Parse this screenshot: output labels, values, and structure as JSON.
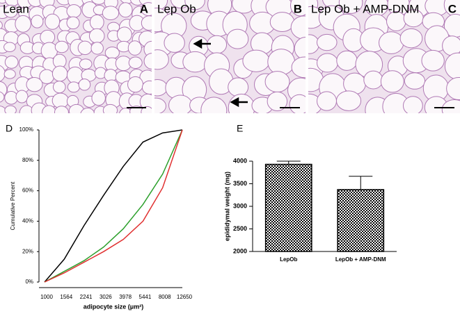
{
  "panels": [
    {
      "label": "Lean",
      "letter": "A"
    },
    {
      "label": "Lep Ob",
      "letter": "B"
    },
    {
      "label": "Lep Ob + AMP-DNM",
      "letter": "C"
    }
  ],
  "chart_data": [
    {
      "type": "line",
      "panel": "D",
      "y_label": "Cumulative Percent",
      "x_label": "adipocyte size (μm²)",
      "categories": [
        "1000",
        "1564",
        "2241",
        "3026",
        "3978",
        "5441",
        "8008",
        "12650"
      ],
      "series": [
        {
          "color": "#000000",
          "values": [
            0,
            15,
            37,
            57,
            76,
            92,
            98,
            100
          ]
        },
        {
          "color": "#2ca02c",
          "values": [
            0,
            7,
            14,
            23,
            35,
            51,
            71,
            100
          ]
        },
        {
          "color": "#e03030",
          "values": [
            0,
            6,
            13,
            20,
            28,
            40,
            62,
            100
          ]
        }
      ],
      "ylim": [
        0,
        100
      ],
      "yticks": [
        {
          "value": 0,
          "label": "0%"
        },
        {
          "value": 20,
          "label": "20%"
        },
        {
          "value": 40,
          "label": "40%"
        },
        {
          "value": 60,
          "label": "60%"
        },
        {
          "value": 80,
          "label": "80%"
        },
        {
          "value": 100,
          "label": "100%"
        }
      ]
    },
    {
      "type": "bar",
      "panel": "E",
      "y_label": "epididymal weight (mg)",
      "categories": [
        "LepOb",
        "LepOb + AMP-DNM"
      ],
      "values": [
        3930,
        3370
      ],
      "errors": [
        70,
        295
      ],
      "color": "#000000",
      "ylim": [
        2000,
        4000
      ],
      "yticks": [
        2000,
        2500,
        3000,
        3500,
        4000
      ]
    }
  ]
}
